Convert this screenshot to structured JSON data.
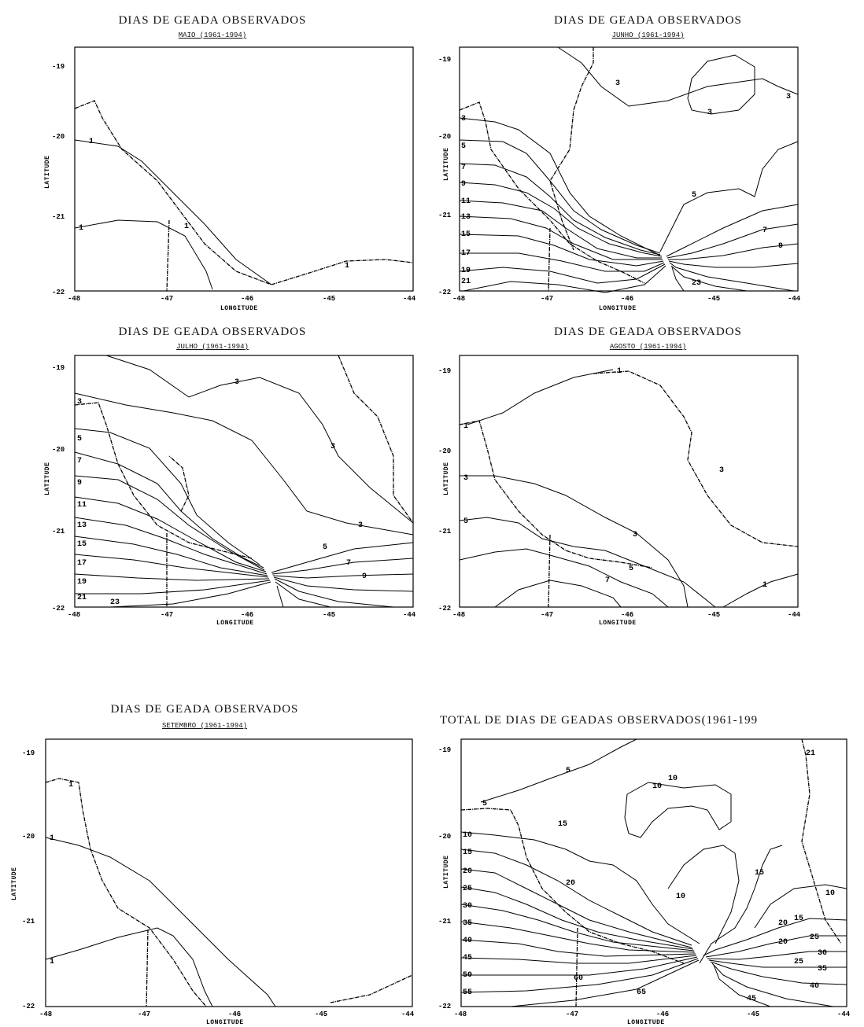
{
  "panels": [
    {
      "id": "maio",
      "title": "DIAS DE GEADA OBSERVADOS",
      "subtitle": "MAIO (1961-1994)",
      "xlabel": "LONGITUDE",
      "ylabel": "LATITUDE",
      "xticks": [
        "-48",
        "-47",
        "-46",
        "-45",
        "-44"
      ],
      "yticks": [
        "-19",
        "-20",
        "-21",
        "-22"
      ],
      "contour_labels": [
        "1",
        "1",
        "1",
        "1"
      ]
    },
    {
      "id": "junho",
      "title": "DIAS DE GEADA OBSERVADOS",
      "subtitle": "JUNHO (1961-1994)",
      "xlabel": "LONGITUDE",
      "ylabel": "LATITUDE",
      "xticks": [
        "-48",
        "-47",
        "-46",
        "-45",
        "-44"
      ],
      "yticks": [
        "-19",
        "-20",
        "-21",
        "-22"
      ],
      "contour_labels": [
        "3",
        "3",
        "3",
        "3",
        "5",
        "5",
        "7",
        "7",
        "9",
        "9",
        "11",
        "13",
        "15",
        "17",
        "19",
        "21",
        "23",
        "5",
        "7",
        "9"
      ]
    },
    {
      "id": "julho",
      "title": "DIAS DE GEADA OBSERVADOS",
      "subtitle": "JULHO (1961-1994)",
      "xlabel": "LONGITUDE",
      "ylabel": "LATITUDE",
      "xticks": [
        "-48",
        "-47",
        "-46",
        "-45",
        "-44"
      ],
      "yticks": [
        "-19",
        "-20",
        "-21",
        "-22"
      ],
      "contour_labels": [
        "3",
        "3",
        "3",
        "3",
        "5",
        "7",
        "9",
        "11",
        "13",
        "15",
        "17",
        "19",
        "21",
        "23",
        "5",
        "7",
        "9"
      ]
    },
    {
      "id": "agosto",
      "title": "DIAS DE GEADA OBSERVADOS",
      "subtitle": "AGOSTO (1961-1994)",
      "xlabel": "LONGITUDE",
      "ylabel": "LATITUDE",
      "xticks": [
        "-48",
        "-47",
        "-46",
        "-45",
        "-44"
      ],
      "yticks": [
        "-19",
        "-20",
        "-21",
        "-22"
      ],
      "contour_labels": [
        "1",
        "1",
        "3",
        "3",
        "3",
        "5",
        "5",
        "7",
        "1"
      ]
    },
    {
      "id": "setembro",
      "title": "DIAS DE GEADA OBSERVADOS",
      "subtitle": "SETEMBRO (1961-1994)",
      "xlabel": "LONGITUDE",
      "ylabel": "LATITUDE",
      "xticks": [
        "-48",
        "-47",
        "-46",
        "-45",
        "-44"
      ],
      "yticks": [
        "-19",
        "-20",
        "-21",
        "-22"
      ],
      "contour_labels": [
        "1",
        "1",
        "1"
      ]
    },
    {
      "id": "total",
      "title": "TOTAL DE DIAS DE GEADAS OBSERVADOS(1961-199",
      "subtitle": "",
      "xlabel": "LONGITUDE",
      "ylabel": "LATITUDE",
      "xticks": [
        "-48",
        "-47",
        "-46",
        "-45",
        "-44"
      ],
      "yticks": [
        "-19",
        "-20",
        "-21",
        "-22"
      ],
      "contour_labels": [
        "5",
        "10",
        "15",
        "20",
        "25",
        "30",
        "35",
        "40",
        "45",
        "50",
        "55",
        "60",
        "65",
        "5",
        "10",
        "15",
        "20",
        "10",
        "15",
        "20",
        "25",
        "30",
        "35",
        "40",
        "45",
        "21",
        "10",
        "10",
        "15",
        "20",
        "25"
      ]
    }
  ]
}
